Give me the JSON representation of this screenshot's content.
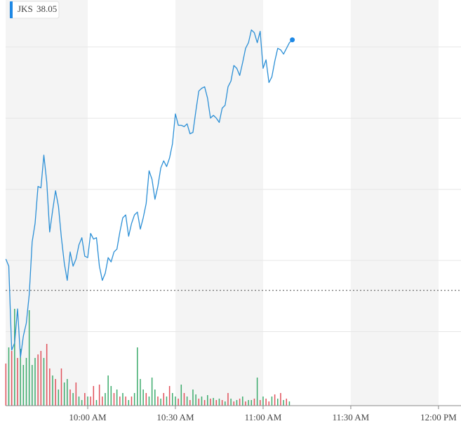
{
  "chart_data": {
    "type": "line",
    "series": [
      {
        "name": "JKS",
        "color": "#2b8fd6",
        "values": [
          36.51,
          36.46,
          35.87,
          35.92,
          36.16,
          35.82,
          35.97,
          36.06,
          36.26,
          36.63,
          36.76,
          37.02,
          37.01,
          37.24,
          37.05,
          36.7,
          36.85,
          36.99,
          36.88,
          36.66,
          36.48,
          36.36,
          36.56,
          36.46,
          36.51,
          36.61,
          36.66,
          36.53,
          36.52,
          36.69,
          36.65,
          36.66,
          36.46,
          36.36,
          36.41,
          36.52,
          36.49,
          36.56,
          36.58,
          36.7,
          36.8,
          36.82,
          36.67,
          36.76,
          36.82,
          36.84,
          36.72,
          36.8,
          36.9,
          37.13,
          37.07,
          36.93,
          37.02,
          37.15,
          37.2,
          37.16,
          37.22,
          37.32,
          37.53,
          37.45,
          37.45,
          37.44,
          37.46,
          37.39,
          37.4,
          37.55,
          37.69,
          37.71,
          37.72,
          37.64,
          37.5,
          37.52,
          37.5,
          37.47,
          37.57,
          37.59,
          37.72,
          37.76,
          37.87,
          37.85,
          37.8,
          37.89,
          37.99,
          38.03,
          38.12,
          38.1,
          38.03,
          38.11,
          37.85,
          37.91,
          37.75,
          37.79,
          37.9,
          37.99,
          37.98,
          37.95,
          37.99,
          38.03,
          38.05
        ]
      }
    ],
    "x": [
      2,
      3,
      4,
      5,
      6,
      7,
      8,
      9,
      10,
      11,
      12,
      13,
      14,
      15,
      16,
      17,
      18,
      19,
      20,
      21,
      22,
      23,
      24,
      25,
      26,
      27,
      28,
      29,
      30,
      31,
      32,
      33,
      34,
      35,
      36,
      37,
      38,
      39,
      40,
      41,
      42,
      43,
      44,
      45,
      46,
      47,
      48,
      49,
      50,
      51,
      52,
      53,
      54,
      55,
      56,
      57,
      58,
      59,
      60,
      61,
      62,
      63,
      64,
      65,
      66,
      67,
      68,
      69,
      70,
      71,
      72,
      73,
      74,
      75,
      76,
      77,
      78,
      79,
      80,
      81,
      82,
      83,
      84,
      85,
      86,
      87,
      88,
      89,
      90,
      91,
      92,
      93,
      94,
      95,
      96,
      97,
      98,
      99,
      100
    ],
    "volume": {
      "values": [
        60,
        83,
        78,
        138,
        68,
        81,
        58,
        68,
        136,
        58,
        68,
        73,
        78,
        68,
        88,
        53,
        43,
        38,
        23,
        53,
        33,
        38,
        23,
        18,
        33,
        13,
        8,
        18,
        13,
        13,
        28,
        8,
        30,
        13,
        18,
        43,
        28,
        18,
        23,
        13,
        18,
        13,
        8,
        13,
        18,
        83,
        38,
        23,
        18,
        13,
        40,
        23,
        13,
        10,
        18,
        13,
        28,
        18,
        13,
        10,
        30,
        18,
        13,
        8,
        23,
        16,
        10,
        13,
        8,
        15,
        10,
        11,
        8,
        10,
        8,
        6,
        18,
        10,
        6,
        8,
        10,
        13,
        6,
        8,
        8,
        10,
        40,
        8,
        13,
        10,
        6,
        13,
        16,
        10,
        18,
        8,
        10,
        6,
        null
      ],
      "down": [
        true,
        false,
        true,
        false,
        true,
        false,
        false,
        false,
        false,
        false,
        false,
        true,
        true,
        false,
        true,
        true,
        false,
        true,
        false,
        true,
        false,
        false,
        true,
        false,
        true,
        false,
        false,
        true,
        false,
        true,
        true,
        false,
        true,
        true,
        false,
        false,
        false,
        true,
        false,
        true,
        false,
        true,
        false,
        true,
        false,
        false,
        false,
        false,
        true,
        false,
        false,
        false,
        true,
        false,
        true,
        false,
        true,
        false,
        false,
        true,
        false,
        true,
        false,
        true,
        false,
        false,
        true,
        false,
        true,
        false,
        true,
        false,
        true,
        false,
        true,
        false,
        true,
        false,
        true,
        false,
        true,
        false,
        true,
        false,
        false,
        true,
        false,
        true,
        false,
        true,
        true,
        false,
        true,
        false,
        true,
        false,
        true,
        false,
        false
      ],
      "vlim": [
        0,
        200
      ],
      "up_color": "#3cab6c",
      "down_color": "#e0505a"
    },
    "prev_close": 36.29,
    "xlim": [
      0,
      157.7
    ],
    "ylim": [
      35.48,
      38.33
    ],
    "xticks": [
      {
        "value": 30,
        "label": "10:00 AM"
      },
      {
        "value": 60,
        "label": "10:30 AM"
      },
      {
        "value": 90,
        "label": "11:00 AM"
      },
      {
        "value": 120,
        "label": "11:30 AM"
      },
      {
        "value": 150,
        "label": "12:00 PM"
      }
    ],
    "ygrid": [
      38,
      37.5,
      37,
      36.5,
      36
    ],
    "grid": true
  }
}
